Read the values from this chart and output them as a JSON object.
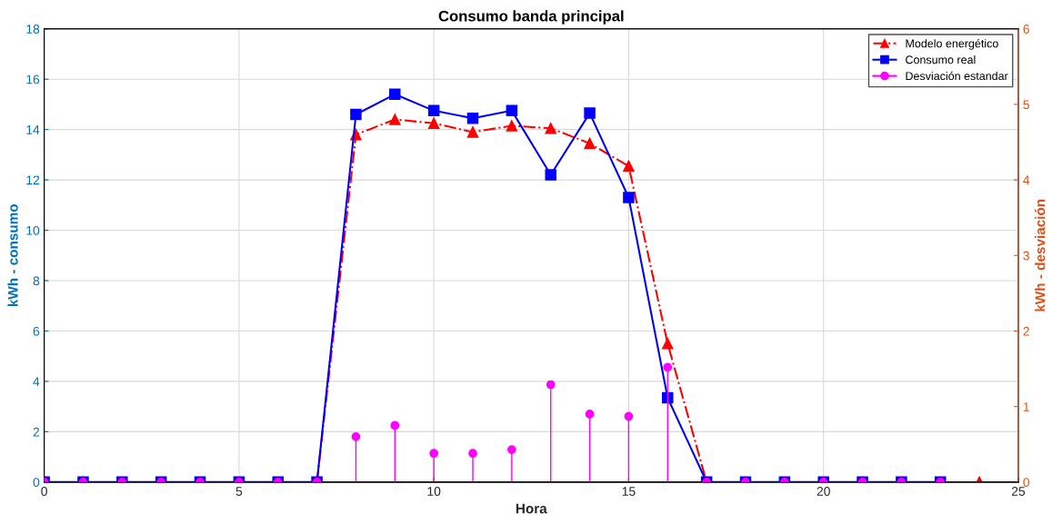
{
  "chart_data": {
    "type": "line",
    "title": "Consumo banda principal",
    "xlabel": "Hora",
    "ylabel": "kWh - consumo",
    "y2label": "kWh - desviación",
    "xlim": [
      0,
      25
    ],
    "xticks": [
      0,
      5,
      10,
      15,
      20,
      25
    ],
    "ylim": [
      0,
      18
    ],
    "yticks": [
      0,
      2,
      4,
      6,
      8,
      10,
      12,
      14,
      16,
      18
    ],
    "y2lim": [
      0,
      6
    ],
    "y2ticks": [
      0,
      1,
      2,
      3,
      4,
      5,
      6
    ],
    "grid": true,
    "legend": "top right",
    "series": [
      {
        "name": "Modelo energético",
        "color": "#ff0000",
        "marker": "triangle",
        "line_style": "dashdot",
        "x": [
          7,
          8,
          9,
          10,
          11,
          12,
          13,
          14,
          15,
          16,
          17,
          18,
          19,
          20,
          21,
          22,
          23,
          24
        ],
        "values": [
          0,
          13.8,
          14.4,
          14.25,
          13.9,
          14.15,
          14.05,
          13.45,
          12.55,
          5.5,
          0,
          null,
          null,
          null,
          null,
          null,
          null,
          0
        ]
      },
      {
        "name": "Consumo real",
        "color": "#0000ff",
        "marker": "square",
        "line_style": "solid",
        "x": [
          0,
          1,
          2,
          3,
          4,
          5,
          6,
          7,
          8,
          9,
          10,
          11,
          12,
          13,
          14,
          15,
          16,
          17,
          18,
          19,
          20,
          21,
          22,
          23
        ],
        "values": [
          0,
          0,
          0,
          0,
          0,
          0,
          0,
          0,
          14.6,
          15.4,
          14.75,
          14.45,
          14.75,
          12.2,
          14.65,
          11.3,
          3.35,
          0,
          0,
          0,
          0,
          0,
          0,
          0
        ]
      },
      {
        "name": "Desviación estandar",
        "type": "lollipop",
        "axis": "y2",
        "color": "#ff00ff",
        "marker": "circle",
        "x": [
          0,
          1,
          2,
          3,
          4,
          5,
          6,
          7,
          8,
          9,
          10,
          11,
          12,
          13,
          14,
          15,
          16,
          17,
          18,
          19,
          20,
          21,
          22,
          23
        ],
        "values": [
          0,
          0,
          0,
          0,
          0,
          0,
          0,
          0,
          0.6,
          0.75,
          0.38,
          0.38,
          0.43,
          1.29,
          0.9,
          0.87,
          1.52,
          0,
          0,
          0,
          0,
          0,
          0,
          0
        ]
      }
    ]
  }
}
